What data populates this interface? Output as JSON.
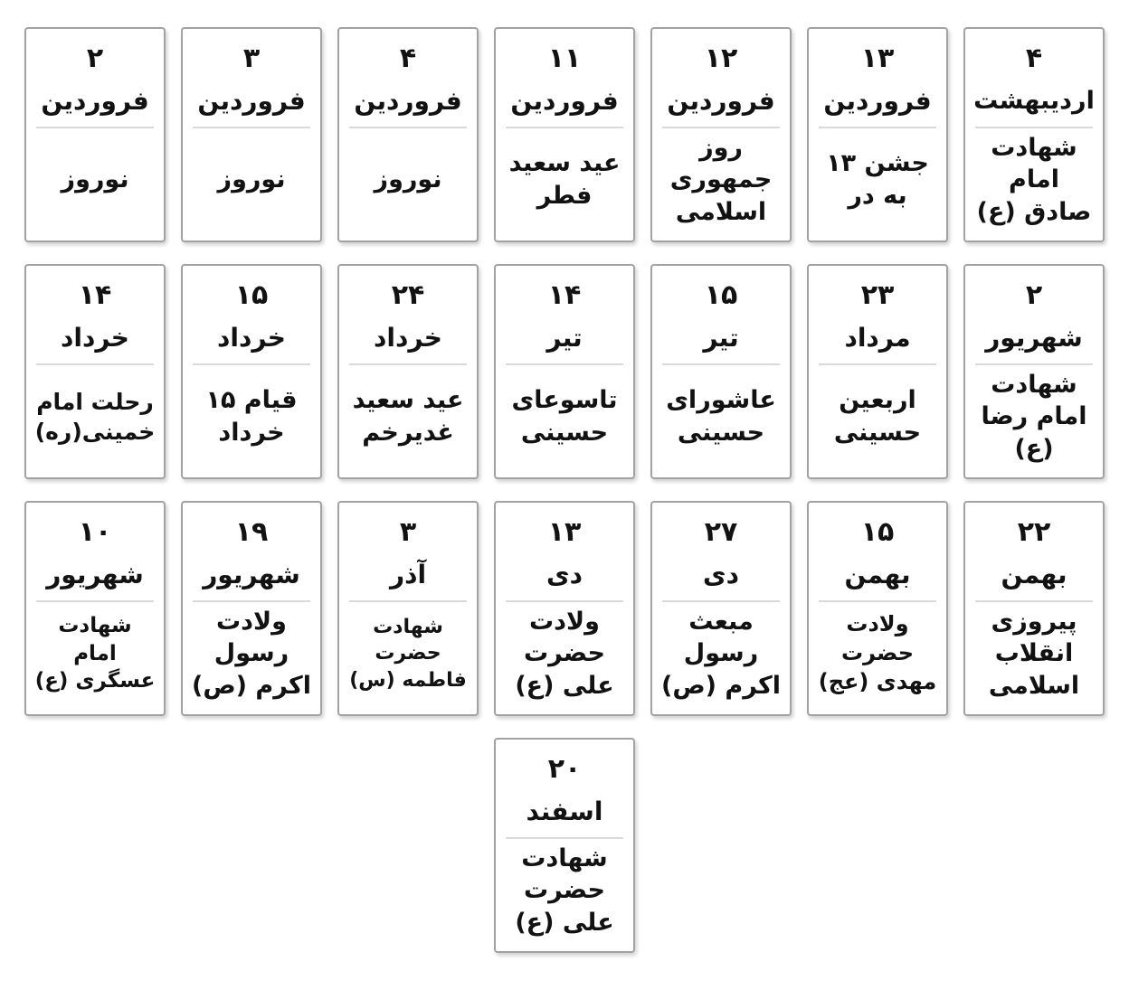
{
  "colors": {
    "background": "#ffffff",
    "card_background": "#ffffff",
    "card_border": "#a2a2a2",
    "divider": "#d9d9d9",
    "text": "#121212"
  },
  "rows": [
    {
      "cards": [
        {
          "day": "۲",
          "month": "فروردین",
          "event": "نوروز"
        },
        {
          "day": "۳",
          "month": "فروردین",
          "event": "نوروز"
        },
        {
          "day": "۴",
          "month": "فروردین",
          "event": "نوروز"
        },
        {
          "day": "۱۱",
          "month": "فروردین",
          "event": "عید سعید فطر"
        },
        {
          "day": "۱۲",
          "month": "فروردین",
          "event": "روز جمهوری اسلامی"
        },
        {
          "day": "۱۳",
          "month": "فروردین",
          "event": "جشن ۱۳ به در"
        },
        {
          "day": "۴",
          "month": "اردیبهشت",
          "event": "شهادت امام صادق (ع)"
        }
      ]
    },
    {
      "cards": [
        {
          "day": "۱۴",
          "month": "خرداد",
          "event": "رحلت امام خمینی(ره)"
        },
        {
          "day": "۱۵",
          "month": "خرداد",
          "event": "قیام ۱۵ خرداد"
        },
        {
          "day": "۲۴",
          "month": "خرداد",
          "event": "عید سعید غدیرخم"
        },
        {
          "day": "۱۴",
          "month": "تیر",
          "event": "تاسوعای حسینی"
        },
        {
          "day": "۱۵",
          "month": "تیر",
          "event": "عاشورای حسینی"
        },
        {
          "day": "۲۳",
          "month": "مرداد",
          "event": "اربعین حسینی"
        },
        {
          "day": "۲",
          "month": "شهریور",
          "event": "شهادت امام رضا (ع)"
        }
      ]
    },
    {
      "cards": [
        {
          "day": "۱۰",
          "month": "شهریور",
          "event": "شهادت امام عسگری (ع)"
        },
        {
          "day": "۱۹",
          "month": "شهریور",
          "event": "ولادت رسول اکرم (ص)"
        },
        {
          "day": "۳",
          "month": "آذر",
          "event": "شهادت حضرت فاطمه (س)"
        },
        {
          "day": "۱۳",
          "month": "دی",
          "event": "ولادت حضرت علی (ع)"
        },
        {
          "day": "۲۷",
          "month": "دی",
          "event": "مبعث رسول اکرم (ص)"
        },
        {
          "day": "۱۵",
          "month": "بهمن",
          "event": "ولادت حضرت مهدی (عج)"
        },
        {
          "day": "۲۲",
          "month": "بهمن",
          "event": "پیروزی انقلاب اسلامی"
        }
      ]
    },
    {
      "cards": [
        {
          "day": "۲۰",
          "month": "اسفند",
          "event": "شهادت حضرت علی (ع)"
        }
      ]
    }
  ]
}
